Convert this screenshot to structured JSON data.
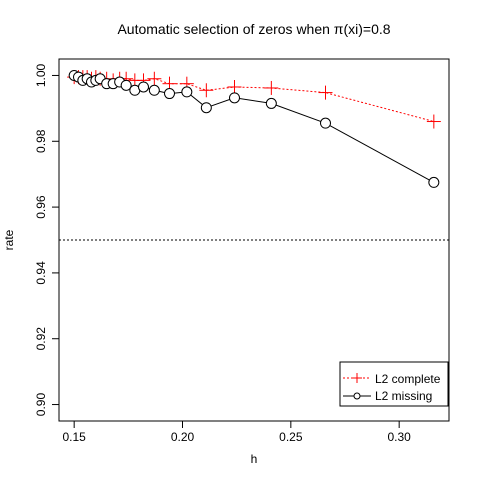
{
  "chart_data": {
    "type": "line",
    "title": "Automatic selection of zeros when π(xi)=0.8",
    "xlabel": "h",
    "ylabel": "rate",
    "xlim": [
      0.143,
      0.323
    ],
    "ylim": [
      0.895,
      1.005
    ],
    "x_ticks": [
      0.15,
      0.2,
      0.25,
      0.3
    ],
    "x_tick_labels": [
      "0.15",
      "0.20",
      "0.25",
      "0.30"
    ],
    "y_ticks": [
      0.9,
      0.92,
      0.94,
      0.96,
      0.98,
      1.0
    ],
    "y_tick_labels": [
      "0.90",
      "0.92",
      "0.94",
      "0.96",
      "0.98",
      "1.00"
    ],
    "reference_line": {
      "y": 0.95,
      "style": "dotted"
    },
    "legend_position": "bottom-right",
    "series": [
      {
        "name": "L2 complete",
        "color": "#ff0000",
        "line_style": "dotted",
        "marker": "plus",
        "x": [
          0.15,
          0.152,
          0.154,
          0.156,
          0.158,
          0.16,
          0.162,
          0.165,
          0.168,
          0.171,
          0.174,
          0.178,
          0.182,
          0.187,
          0.194,
          0.202,
          0.211,
          0.224,
          0.241,
          0.266,
          0.316
        ],
        "y": [
          0.9995,
          0.9995,
          0.9995,
          0.9995,
          0.999,
          0.9995,
          0.999,
          0.999,
          0.9985,
          0.999,
          0.999,
          0.9985,
          0.9985,
          0.999,
          0.9975,
          0.9975,
          0.9955,
          0.9965,
          0.9962,
          0.9948,
          0.986
        ]
      },
      {
        "name": "L2 missing",
        "color": "#000000",
        "line_style": "solid",
        "marker": "circle",
        "x": [
          0.15,
          0.152,
          0.154,
          0.156,
          0.158,
          0.16,
          0.162,
          0.165,
          0.168,
          0.171,
          0.174,
          0.178,
          0.182,
          0.187,
          0.194,
          0.202,
          0.211,
          0.224,
          0.241,
          0.266,
          0.316
        ],
        "y": [
          1.0,
          0.9995,
          0.9985,
          0.999,
          0.998,
          0.9985,
          0.999,
          0.9975,
          0.9975,
          0.998,
          0.997,
          0.9955,
          0.9965,
          0.9955,
          0.9945,
          0.995,
          0.9902,
          0.9932,
          0.9915,
          0.9855,
          0.9675
        ]
      }
    ]
  }
}
